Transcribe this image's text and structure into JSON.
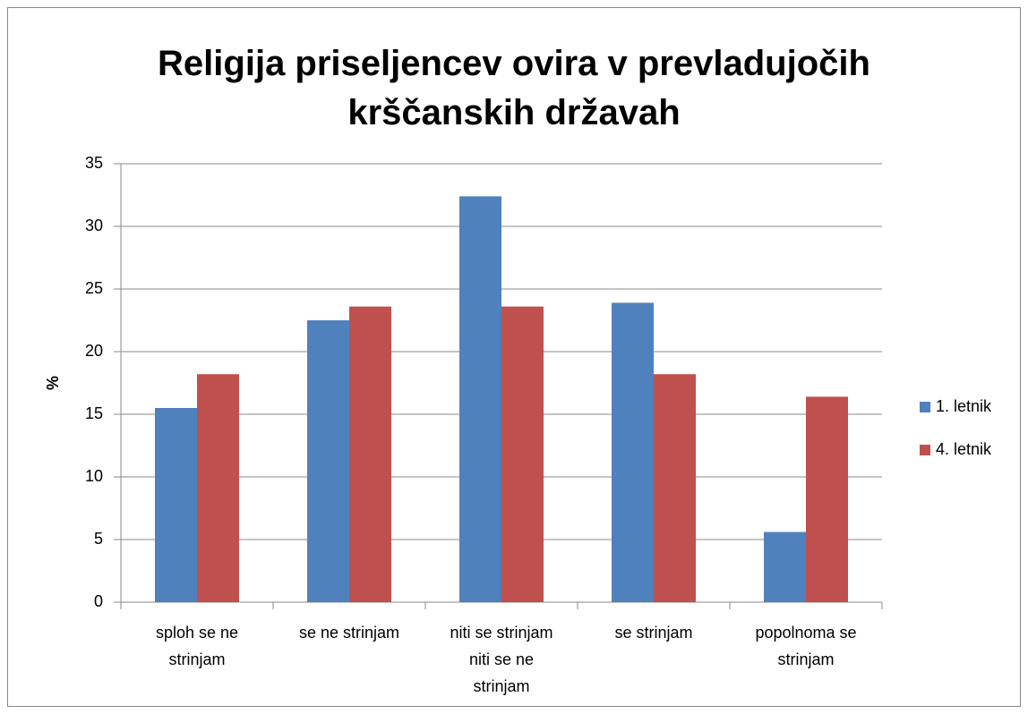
{
  "chart_data": {
    "type": "bar",
    "title": "Religija priseljencev ovira v prevladujočih krščanskih državah",
    "ylabel": "%",
    "categories": [
      "sploh se ne strinjam",
      "se ne strinjam",
      "niti se strinjam niti se ne strinjam",
      "se strinjam",
      "popolnoma se strinjam"
    ],
    "series": [
      {
        "name": "1. letnik",
        "color": "#4f81bd",
        "values": [
          15.5,
          22.5,
          32.4,
          23.9,
          5.6
        ]
      },
      {
        "name": "4. letnik",
        "color": "#c0504d",
        "values": [
          18.2,
          23.6,
          23.6,
          18.2,
          16.4
        ]
      }
    ],
    "ylim": [
      0,
      35
    ],
    "yticks": [
      0,
      5,
      10,
      15,
      20,
      25,
      30,
      35
    ],
    "grid": true,
    "legend": "right"
  }
}
